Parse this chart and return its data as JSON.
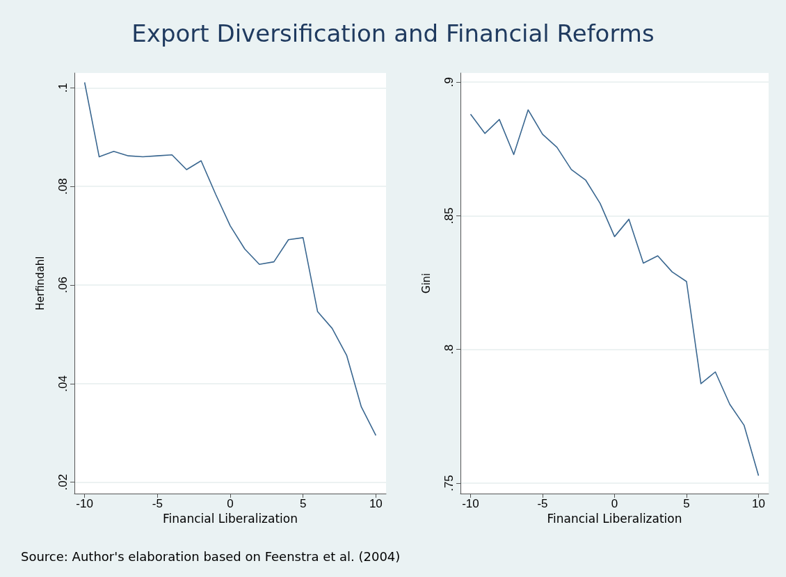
{
  "chart_data": [
    {
      "type": "line",
      "title": "Export Diversification and Financial Reforms",
      "xlabel": "Financial Liberalization",
      "ylabel": "Herfindahl",
      "x": [
        -10,
        -9,
        -8,
        -7,
        -6,
        -5,
        -4,
        -3,
        -2,
        -1,
        0,
        1,
        2,
        3,
        4,
        5,
        6,
        7,
        8,
        9,
        10
      ],
      "series": [
        {
          "color": "#3a6790",
          "values": [
            0.1011,
            0.086,
            0.0871,
            0.0862,
            0.086,
            0.0862,
            0.0864,
            0.0834,
            0.0852,
            0.0784,
            0.072,
            0.0673,
            0.0642,
            0.0647,
            0.0692,
            0.0696,
            0.0546,
            0.0512,
            0.0457,
            0.0353,
            0.0295
          ]
        }
      ],
      "xlim": [
        -10.7,
        10.7
      ],
      "xticks": [
        -10,
        -5,
        0,
        5,
        10
      ],
      "ylim": [
        0.0177,
        0.103
      ],
      "yticks": [
        {
          "value": 0.02,
          "label": ".02"
        },
        {
          "value": 0.04,
          "label": ".04"
        },
        {
          "value": 0.06,
          "label": ".06"
        },
        {
          "value": 0.08,
          "label": ".08"
        },
        {
          "value": 0.1,
          "label": ".1"
        }
      ],
      "grid": "y",
      "marker": "none",
      "line_style": "solid",
      "annotations": [
        "Source: Author's elaboration based on Feenstra et al. (2004)"
      ]
    },
    {
      "type": "line",
      "xlabel": "Financial Liberalization",
      "ylabel": "Gini",
      "x": [
        -10,
        -9,
        -8,
        -7,
        -6,
        -5,
        -4,
        -3,
        -2,
        -1,
        0,
        1,
        2,
        3,
        4,
        5,
        6,
        7,
        8,
        9,
        10
      ],
      "series": [
        {
          "color": "#3a6790",
          "values": [
            0.888,
            0.8808,
            0.886,
            0.8729,
            0.8896,
            0.8805,
            0.8756,
            0.8673,
            0.8633,
            0.8546,
            0.8422,
            0.8487,
            0.8323,
            0.835,
            0.829,
            0.8254,
            0.7872,
            0.7916,
            0.7795,
            0.7716,
            0.7528
          ]
        }
      ],
      "xlim": [
        -10.7,
        10.7
      ],
      "xticks": [
        -10,
        -5,
        0,
        5,
        10
      ],
      "ylim": [
        0.7461,
        0.9034
      ],
      "yticks": [
        {
          "value": 0.75,
          "label": ".75"
        },
        {
          "value": 0.8,
          "label": ".8"
        },
        {
          "value": 0.85,
          "label": ".85"
        },
        {
          "value": 0.9,
          "label": ".9"
        }
      ],
      "grid": "y",
      "marker": "none",
      "line_style": "solid"
    }
  ]
}
